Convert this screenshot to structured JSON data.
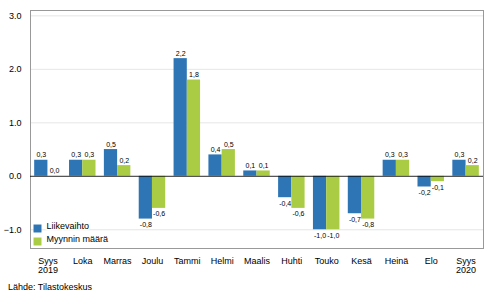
{
  "chart_data": {
    "type": "bar",
    "categories": [
      "Syys\n2019",
      "Loka",
      "Marras",
      "Joulu",
      "Tammi",
      "Helmi",
      "Maalis",
      "Huhti",
      "Touko",
      "Kesä",
      "Heinä",
      "Elo",
      "Syys\n2020"
    ],
    "series": [
      {
        "name": "Liikevaihto",
        "color": "#2E75B6",
        "values": [
          0.3,
          0.3,
          0.5,
          -0.8,
          2.2,
          0.4,
          0.1,
          -0.4,
          -1.0,
          -0.7,
          0.3,
          -0.2,
          0.3
        ],
        "value_labels": [
          "0,3",
          "0,3",
          "0,5",
          "-0,8",
          "2,2",
          "0,4",
          "0,1",
          "-0,4",
          "-1,0",
          "-0,7",
          "0,3",
          "-0,2",
          "0,3"
        ]
      },
      {
        "name": "Myynnin määrä",
        "color": "#AACC44",
        "values": [
          0.0,
          0.3,
          0.2,
          -0.6,
          1.8,
          0.5,
          0.1,
          -0.6,
          -1.0,
          -0.8,
          0.3,
          -0.1,
          0.2
        ],
        "value_labels": [
          "0,0",
          "0,3",
          "0,2",
          "-0,6",
          "1,8",
          "0,5",
          "0,1",
          "-0,6",
          "-1,0",
          "-0,8",
          "0,3",
          "-0,1",
          "0,2"
        ]
      }
    ],
    "ylim": [
      -1.35,
      3.1
    ],
    "yticks": [
      -1,
      0,
      1,
      2,
      3
    ],
    "grid": true,
    "legend": "lower left",
    "data_labels": true,
    "caption": "Lähde: Tilastokeskus"
  }
}
